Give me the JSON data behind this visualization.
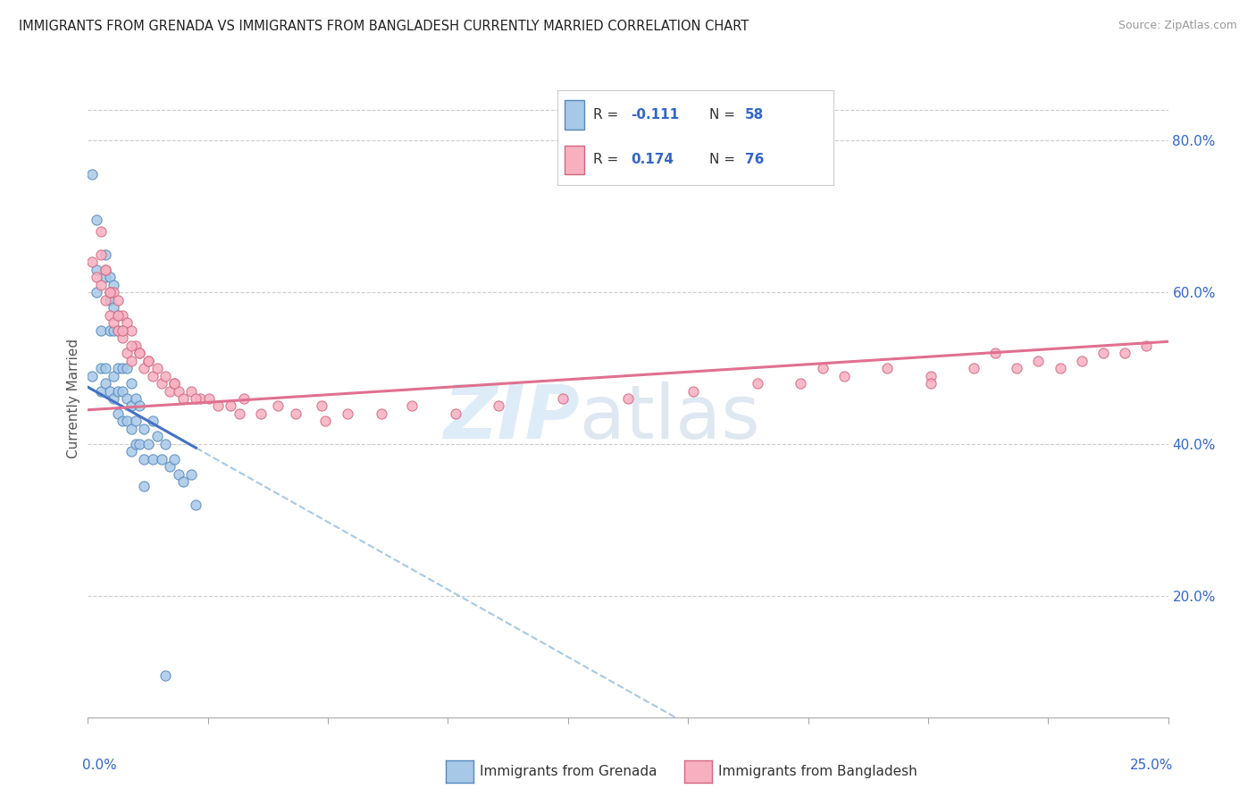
{
  "title": "IMMIGRANTS FROM GRENADA VS IMMIGRANTS FROM BANGLADESH CURRENTLY MARRIED CORRELATION CHART",
  "source": "Source: ZipAtlas.com",
  "ylabel": "Currently Married",
  "right_yticks": [
    0.2,
    0.4,
    0.6,
    0.8
  ],
  "right_yticklabels": [
    "20.0%",
    "40.0%",
    "60.0%",
    "80.0%"
  ],
  "xmin": 0.0,
  "xmax": 0.25,
  "ymin": 0.04,
  "ymax": 0.88,
  "grenada_color": "#a8c8e8",
  "grenada_edge": "#5588bb",
  "bangladesh_color": "#f8b0c0",
  "bangladesh_edge": "#d06880",
  "grenada_line_color": "#4472c4",
  "bangladesh_line_color": "#e07090",
  "dashed_color": "#90bce0",
  "legend_text_color": "#3366cc",
  "axis_text_color": "#3366cc",
  "grenada_line_x0": 0.0,
  "grenada_line_y0": 0.475,
  "grenada_line_x1": 0.025,
  "grenada_line_y1": 0.395,
  "grenada_line_solid_end": 0.025,
  "grenada_line_dashed_end": 0.25,
  "bangladesh_line_x0": 0.0,
  "bangladesh_line_y0": 0.445,
  "bangladesh_line_x1": 0.25,
  "bangladesh_line_y1": 0.535,
  "grenada_x": [
    0.001,
    0.001,
    0.002,
    0.002,
    0.003,
    0.003,
    0.003,
    0.004,
    0.004,
    0.004,
    0.005,
    0.005,
    0.005,
    0.005,
    0.006,
    0.006,
    0.006,
    0.006,
    0.006,
    0.007,
    0.007,
    0.007,
    0.007,
    0.007,
    0.008,
    0.008,
    0.008,
    0.008,
    0.009,
    0.009,
    0.009,
    0.01,
    0.01,
    0.01,
    0.01,
    0.011,
    0.011,
    0.011,
    0.012,
    0.012,
    0.013,
    0.013,
    0.014,
    0.015,
    0.015,
    0.016,
    0.017,
    0.018,
    0.019,
    0.02,
    0.021,
    0.022,
    0.024,
    0.025,
    0.004,
    0.002,
    0.013,
    0.018
  ],
  "grenada_y": [
    0.756,
    0.49,
    0.63,
    0.6,
    0.55,
    0.5,
    0.47,
    0.62,
    0.5,
    0.48,
    0.62,
    0.59,
    0.55,
    0.47,
    0.61,
    0.58,
    0.55,
    0.49,
    0.46,
    0.57,
    0.55,
    0.5,
    0.47,
    0.44,
    0.55,
    0.5,
    0.47,
    0.43,
    0.5,
    0.46,
    0.43,
    0.48,
    0.45,
    0.42,
    0.39,
    0.46,
    0.43,
    0.4,
    0.45,
    0.4,
    0.42,
    0.38,
    0.4,
    0.43,
    0.38,
    0.41,
    0.38,
    0.4,
    0.37,
    0.38,
    0.36,
    0.35,
    0.36,
    0.32,
    0.65,
    0.695,
    0.345,
    0.095
  ],
  "bangladesh_x": [
    0.001,
    0.002,
    0.003,
    0.004,
    0.004,
    0.005,
    0.005,
    0.006,
    0.006,
    0.007,
    0.007,
    0.008,
    0.008,
    0.009,
    0.009,
    0.01,
    0.01,
    0.011,
    0.012,
    0.013,
    0.014,
    0.015,
    0.016,
    0.017,
    0.018,
    0.019,
    0.02,
    0.021,
    0.022,
    0.024,
    0.026,
    0.028,
    0.03,
    0.033,
    0.036,
    0.04,
    0.044,
    0.048,
    0.054,
    0.06,
    0.068,
    0.075,
    0.085,
    0.095,
    0.11,
    0.125,
    0.14,
    0.155,
    0.165,
    0.175,
    0.185,
    0.195,
    0.205,
    0.215,
    0.22,
    0.225,
    0.23,
    0.235,
    0.003,
    0.003,
    0.005,
    0.004,
    0.007,
    0.008,
    0.01,
    0.012,
    0.014,
    0.02,
    0.025,
    0.035,
    0.055,
    0.17,
    0.195,
    0.21,
    0.24,
    0.245
  ],
  "bangladesh_y": [
    0.64,
    0.62,
    0.61,
    0.63,
    0.59,
    0.6,
    0.57,
    0.6,
    0.56,
    0.59,
    0.55,
    0.57,
    0.54,
    0.56,
    0.52,
    0.55,
    0.51,
    0.53,
    0.52,
    0.5,
    0.51,
    0.49,
    0.5,
    0.48,
    0.49,
    0.47,
    0.48,
    0.47,
    0.46,
    0.47,
    0.46,
    0.46,
    0.45,
    0.45,
    0.46,
    0.44,
    0.45,
    0.44,
    0.45,
    0.44,
    0.44,
    0.45,
    0.44,
    0.45,
    0.46,
    0.46,
    0.47,
    0.48,
    0.48,
    0.49,
    0.5,
    0.49,
    0.5,
    0.5,
    0.51,
    0.5,
    0.51,
    0.52,
    0.68,
    0.65,
    0.6,
    0.63,
    0.57,
    0.55,
    0.53,
    0.52,
    0.51,
    0.48,
    0.46,
    0.44,
    0.43,
    0.5,
    0.48,
    0.52,
    0.52,
    0.53
  ]
}
